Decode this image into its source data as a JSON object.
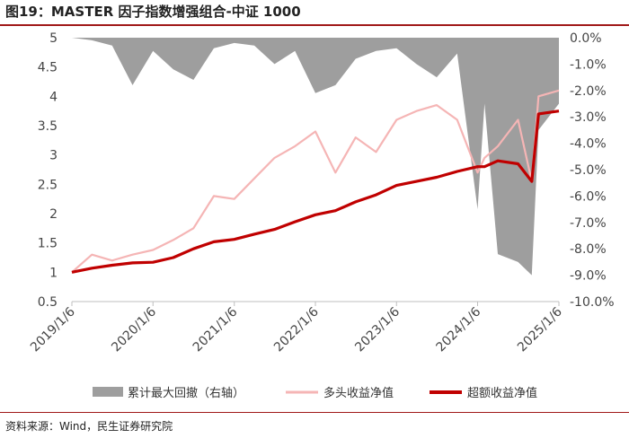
{
  "header": {
    "title": "图19：MASTER 因子指数增强组合-中证 1000"
  },
  "footer": {
    "source": "资料来源：Wind，民生证券研究院"
  },
  "chart_data": {
    "type": "line",
    "x": [
      "2019/1/6",
      "2019/4/6",
      "2019/7/6",
      "2019/10/6",
      "2020/1/6",
      "2020/4/6",
      "2020/7/6",
      "2020/10/6",
      "2021/1/6",
      "2021/4/6",
      "2021/7/6",
      "2021/10/6",
      "2022/1/6",
      "2022/4/6",
      "2022/7/6",
      "2022/10/6",
      "2023/1/6",
      "2023/4/6",
      "2023/7/6",
      "2023/10/6",
      "2024/1/6",
      "2024/2/6",
      "2024/4/6",
      "2024/7/6",
      "2024/9/6",
      "2024/10/6",
      "2025/1/6"
    ],
    "xticks": [
      "2019/1/6",
      "2020/1/6",
      "2021/1/6",
      "2022/1/6",
      "2023/1/6",
      "2024/1/6",
      "2025/1/6"
    ],
    "y_left": {
      "ticks": [
        "0.5",
        "1",
        "1.5",
        "2",
        "2.5",
        "3",
        "3.5",
        "4",
        "4.5",
        "5"
      ],
      "ylim": [
        0.5,
        5
      ]
    },
    "y_right": {
      "ticks": [
        "0.0%",
        "-1.0%",
        "-2.0%",
        "-3.0%",
        "-4.0%",
        "-5.0%",
        "-6.0%",
        "-7.0%",
        "-8.0%",
        "-9.0%",
        "-10.0%"
      ],
      "ylim": [
        -10,
        0
      ],
      "inverted_top_zero": true
    },
    "series": [
      {
        "name": "累计最大回撤（右轴）",
        "type": "area",
        "axis": "right",
        "color": "#9e9e9e",
        "values": [
          0,
          -0.1,
          -0.3,
          -1.8,
          -0.5,
          -1.2,
          -1.6,
          -0.4,
          -0.2,
          -0.3,
          -1.0,
          -0.5,
          -2.1,
          -1.8,
          -0.8,
          -0.5,
          -0.4,
          -1.0,
          -1.5,
          -0.6,
          -6.5,
          -2.5,
          -8.2,
          -8.5,
          -9.0,
          -3.5,
          -2.5
        ]
      },
      {
        "name": "多头收益净值",
        "type": "line",
        "axis": "left",
        "color": "#f5b5b5",
        "values": [
          1.0,
          1.3,
          1.2,
          1.3,
          1.38,
          1.55,
          1.75,
          2.3,
          2.25,
          2.6,
          2.95,
          3.15,
          3.4,
          2.7,
          3.3,
          3.05,
          3.6,
          3.75,
          3.85,
          3.6,
          2.7,
          2.95,
          3.15,
          3.6,
          2.55,
          4.0,
          4.1
        ]
      },
      {
        "name": "超额收益净值",
        "type": "line",
        "axis": "left",
        "color": "#c00000",
        "values": [
          1.0,
          1.07,
          1.12,
          1.16,
          1.17,
          1.25,
          1.4,
          1.52,
          1.56,
          1.65,
          1.73,
          1.86,
          1.98,
          2.05,
          2.2,
          2.32,
          2.48,
          2.55,
          2.62,
          2.72,
          2.8,
          2.8,
          2.9,
          2.85,
          2.55,
          3.7,
          3.75
        ]
      }
    ],
    "legend": {
      "position": "bottom"
    },
    "grid": false
  }
}
